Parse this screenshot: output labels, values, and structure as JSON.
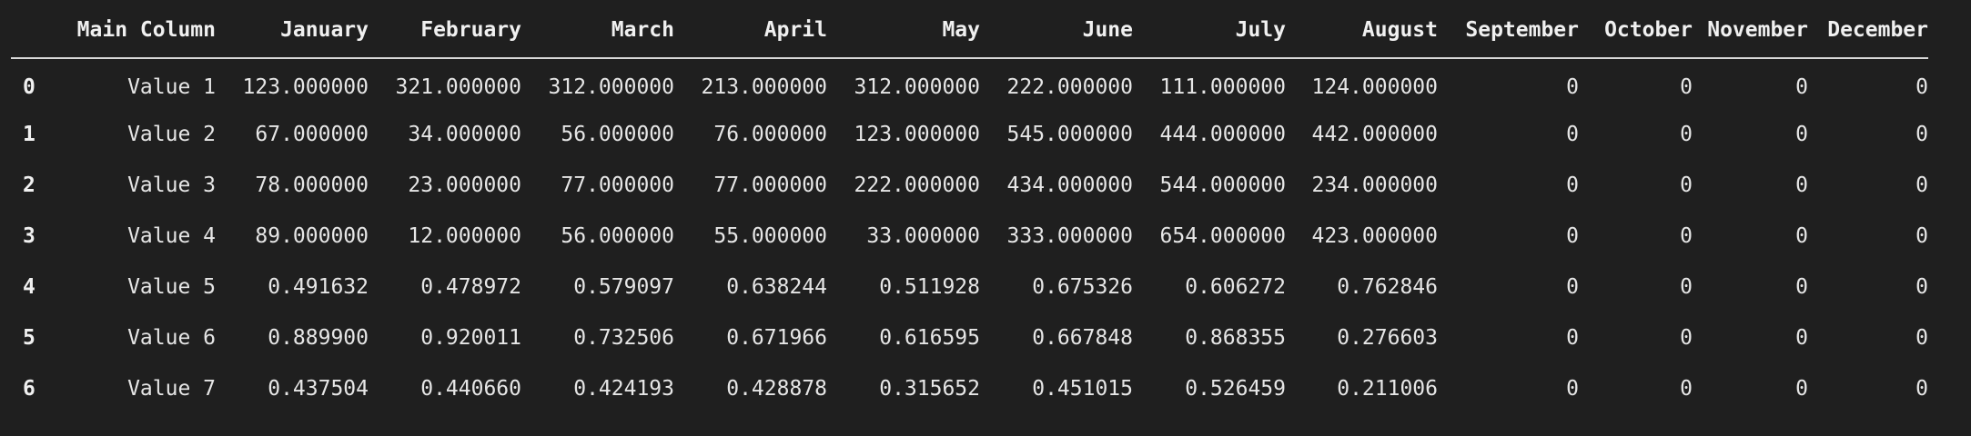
{
  "table": {
    "index_header": "",
    "columns": [
      "Main Column",
      "January",
      "February",
      "March",
      "April",
      "May",
      "June",
      "July",
      "August",
      "September",
      "October",
      "November",
      "December"
    ],
    "rows": [
      {
        "index": "0",
        "cells": [
          "Value 1",
          "123.000000",
          "321.000000",
          "312.000000",
          "213.000000",
          "312.000000",
          "222.000000",
          "111.000000",
          "124.000000",
          "0",
          "0",
          "0",
          "0"
        ]
      },
      {
        "index": "1",
        "cells": [
          "Value 2",
          "67.000000",
          "34.000000",
          "56.000000",
          "76.000000",
          "123.000000",
          "545.000000",
          "444.000000",
          "442.000000",
          "0",
          "0",
          "0",
          "0"
        ]
      },
      {
        "index": "2",
        "cells": [
          "Value 3",
          "78.000000",
          "23.000000",
          "77.000000",
          "77.000000",
          "222.000000",
          "434.000000",
          "544.000000",
          "234.000000",
          "0",
          "0",
          "0",
          "0"
        ]
      },
      {
        "index": "3",
        "cells": [
          "Value 4",
          "89.000000",
          "12.000000",
          "56.000000",
          "55.000000",
          "33.000000",
          "333.000000",
          "654.000000",
          "423.000000",
          "0",
          "0",
          "0",
          "0"
        ]
      },
      {
        "index": "4",
        "cells": [
          "Value 5",
          "0.491632",
          "0.478972",
          "0.579097",
          "0.638244",
          "0.511928",
          "0.675326",
          "0.606272",
          "0.762846",
          "0",
          "0",
          "0",
          "0"
        ]
      },
      {
        "index": "5",
        "cells": [
          "Value 6",
          "0.889900",
          "0.920011",
          "0.732506",
          "0.671966",
          "0.616595",
          "0.667848",
          "0.868355",
          "0.276603",
          "0",
          "0",
          "0",
          "0"
        ]
      },
      {
        "index": "6",
        "cells": [
          "Value 7",
          "0.437504",
          "0.440660",
          "0.424193",
          "0.428878",
          "0.315652",
          "0.451015",
          "0.526459",
          "0.211006",
          "0",
          "0",
          "0",
          "0"
        ]
      }
    ]
  }
}
